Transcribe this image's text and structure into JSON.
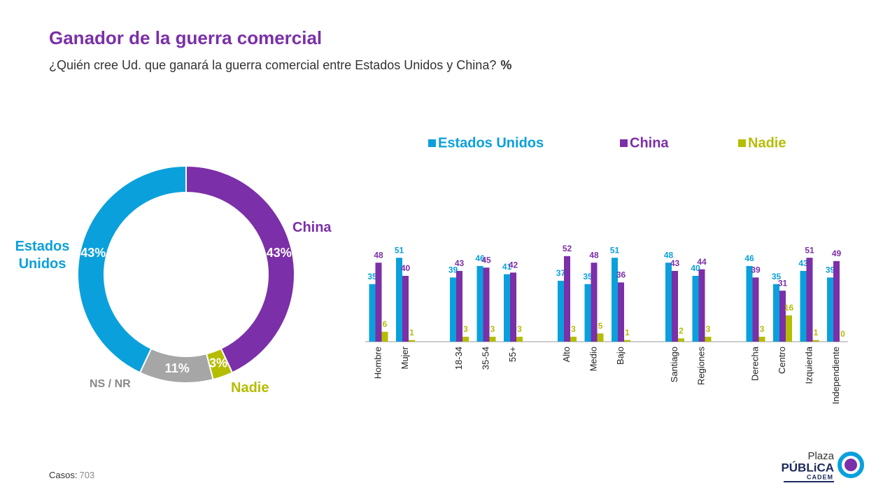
{
  "header": {
    "title": "Ganador de la guerra comercial",
    "subtitle": "¿Quién cree Ud. que ganará la guerra comercial entre Estados Unidos y China?",
    "unit": "%"
  },
  "chart_data": [
    {
      "type": "pie",
      "donut": true,
      "categories": [
        "China",
        "Nadie",
        "NS / NR",
        "Estados Unidos"
      ],
      "values": [
        43,
        3,
        11,
        43
      ],
      "value_labels": [
        "43%",
        "3%",
        "11%",
        "43%"
      ],
      "colors": [
        "#7b2fa8",
        "#b5bd00",
        "#a6a6a6",
        "#0aa0dc"
      ],
      "label_colors": [
        "#7b2fa8",
        "#b5bd00",
        "#888888",
        "#0aa0dc"
      ]
    },
    {
      "type": "bar",
      "categories": [
        "Hombre",
        "Mujer",
        "18-34",
        "35-54",
        "55+",
        "Alto",
        "Medio",
        "Bajo",
        "Santiago",
        "Regiones",
        "Derecha",
        "Centro",
        "Izquierda",
        "Independiente"
      ],
      "series": [
        {
          "name": "Estados Unidos",
          "color": "#0aa0dc",
          "values": [
            35,
            51,
            39,
            46,
            41,
            37,
            35,
            51,
            48,
            40,
            46,
            35,
            43,
            39
          ]
        },
        {
          "name": "China",
          "color": "#7b2fa8",
          "values": [
            48,
            40,
            43,
            45,
            42,
            52,
            48,
            36,
            43,
            44,
            39,
            31,
            51,
            49
          ]
        },
        {
          "name": "Nadie",
          "color": "#b5bd00",
          "values": [
            6,
            1,
            3,
            3,
            3,
            3,
            5,
            1,
            2,
            3,
            3,
            16,
            1,
            0
          ]
        }
      ],
      "legend": "top"
    }
  ],
  "footer": {
    "label": "Casos:",
    "value": "703"
  },
  "logo": {
    "top": "Plaza",
    "main": "PÚBLiCA",
    "sub": "CADEM"
  }
}
